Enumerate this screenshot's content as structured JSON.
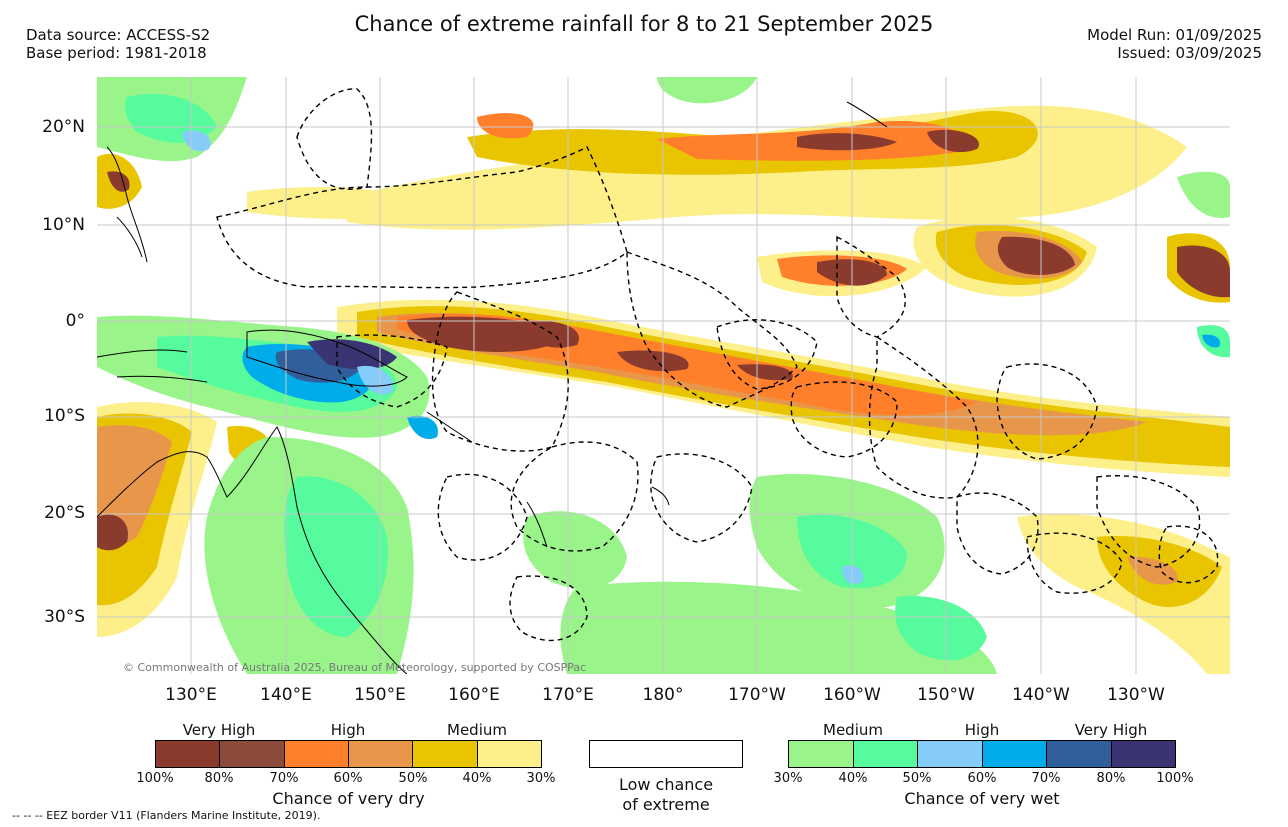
{
  "header": {
    "title": "Chance of extreme rainfall for 8 to 21 September 2025",
    "data_source": "Data source: ACCESS-S2",
    "base_period": "Base period: 1981-2018",
    "model_run": "Model Run: 01/09/2025",
    "issued": "Issued: 03/09/2025"
  },
  "map": {
    "lat_labels": [
      "20°N",
      "10°N",
      "0°",
      "10°S",
      "20°S",
      "30°S"
    ],
    "lon_labels": [
      "130°E",
      "140°E",
      "150°E",
      "160°E",
      "170°E",
      "180°",
      "170°W",
      "160°W",
      "150°W",
      "140°W",
      "130°W"
    ],
    "credit": "© Commonwealth of Australia 2025, Bureau of Meteorology, supported by COSPPac",
    "colors": {
      "dry_100_80": "#8b3a2e",
      "dry_80_70": "#8b4a3a",
      "dry_70_60": "#ff7f2a",
      "dry_60_50": "#e8964a",
      "dry_50_40": "#e9c400",
      "dry_40_30": "#fdf08a",
      "wet_30_40": "#99f58a",
      "wet_40_50": "#55fb9d",
      "wet_50_60": "#86ccfb",
      "wet_60_70": "#00acea",
      "wet_70_80": "#315f9c",
      "wet_80_100": "#3a3472"
    }
  },
  "legend": {
    "dry": {
      "categories": [
        "Very High",
        "High",
        "Medium"
      ],
      "ticks": [
        "100%",
        "80%",
        "70%",
        "60%",
        "50%",
        "40%",
        "30%"
      ],
      "colors": [
        "#8b3a2e",
        "#8b4a3a",
        "#ff7f2a",
        "#e8964a",
        "#e9c400",
        "#fdf08a"
      ],
      "title": "Chance of very dry"
    },
    "low": {
      "line1": "Low chance",
      "line2": "of extreme"
    },
    "wet": {
      "categories": [
        "Medium",
        "High",
        "Very High"
      ],
      "ticks": [
        "30%",
        "40%",
        "50%",
        "60%",
        "70%",
        "80%",
        "100%"
      ],
      "colors": [
        "#99f58a",
        "#55fb9d",
        "#86ccfb",
        "#00acea",
        "#315f9c",
        "#3a3472"
      ],
      "title": "Chance of very wet"
    },
    "eez_note": "-- -- -- EEZ border V11 (Flanders Marine Institute, 2019)."
  }
}
